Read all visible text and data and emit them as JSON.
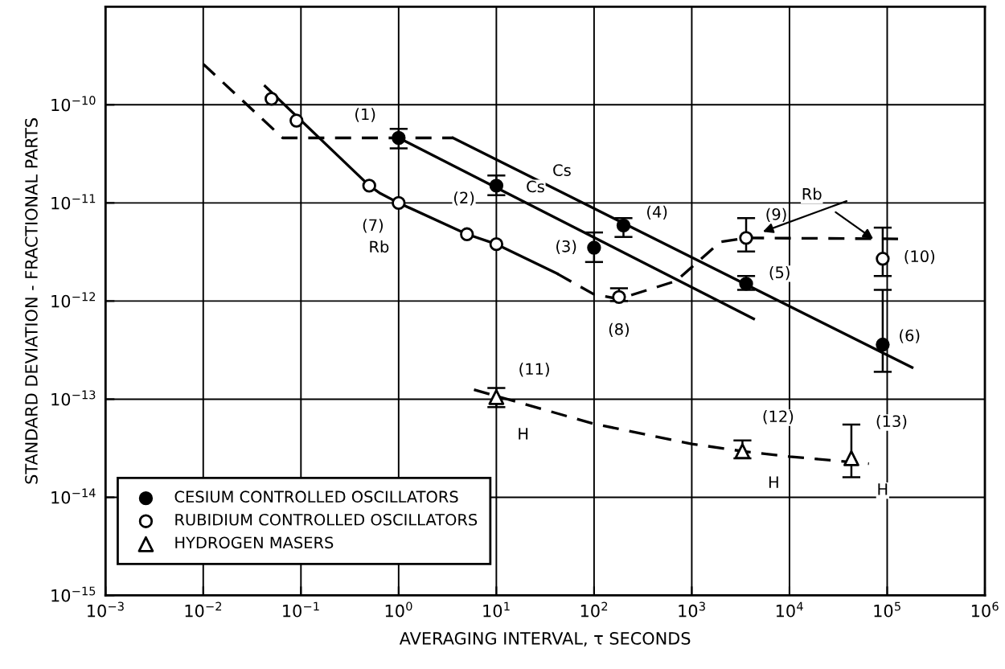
{
  "chart_data": {
    "type": "scatter",
    "xlabel": "AVERAGING INTERVAL, τ SECONDS",
    "ylabel": "STANDARD DEVIATION - FRACTIONAL PARTS",
    "log": "xy",
    "xlim": [
      0.001,
      1000000
    ],
    "ylim": [
      1e-15,
      1e-09
    ],
    "xticks": [
      {
        "value": 0.001,
        "label": "10$^{−3}$"
      },
      {
        "value": 0.01,
        "label": "10$^{−2}$"
      },
      {
        "value": 0.1,
        "label": "10$^{−1}$"
      },
      {
        "value": 1,
        "label": "10$^{0}$"
      },
      {
        "value": 10,
        "label": "10$^{1}$"
      },
      {
        "value": 100,
        "label": "10$^{2}$"
      },
      {
        "value": 1000,
        "label": "10$^{3}$"
      },
      {
        "value": 10000,
        "label": "10$^{4}$"
      },
      {
        "value": 100000,
        "label": "10$^{5}$"
      },
      {
        "value": 1000000,
        "label": "10$^{6}$"
      }
    ],
    "yticks": [
      {
        "value": 1e-15,
        "label": "10$^{−15}$"
      },
      {
        "value": 1e-14,
        "label": "10$^{−14}$"
      },
      {
        "value": 1e-13,
        "label": "10$^{−13}$"
      },
      {
        "value": 1e-12,
        "label": "10$^{−12}$"
      },
      {
        "value": 1e-11,
        "label": "10$^{−11}$"
      },
      {
        "value": 1e-10,
        "label": "10$^{−10}$"
      }
    ],
    "grid": true,
    "legend": "bottom left",
    "series": [
      {
        "name": "CESIUM CONTROLLED OSCILLATORS",
        "marker": "circle",
        "color": "#000000",
        "x": [
          1,
          10,
          100,
          200,
          3600,
          90000
        ],
        "values": [
          4.6e-11,
          1.5e-11,
          3.5e-12,
          5.9e-12,
          1.5e-12,
          3.6e-13
        ],
        "errors": [
          [
            3.6e-11,
            5.7e-11
          ],
          [
            1.2e-11,
            1.9e-11
          ],
          [
            2.5e-12,
            5e-12
          ],
          [
            4.5e-12,
            7e-12
          ],
          [
            1.3e-12,
            1.8e-12
          ],
          [
            1.9e-13,
            1.3e-12
          ]
        ]
      },
      {
        "name": "RUBIDIUM CONTROLLED OSCILLATORS",
        "marker": "circle",
        "color": "#ffffff",
        "x": [
          0.05,
          0.09,
          0.5,
          1,
          5,
          10,
          180,
          3600,
          90000
        ],
        "values": [
          1.15e-10,
          6.9e-11,
          1.5e-11,
          1e-11,
          4.8e-12,
          3.8e-12,
          1.1e-12,
          4.4e-12,
          2.7e-12
        ],
        "errors": [
          null,
          null,
          null,
          null,
          null,
          null,
          [
            1e-12,
            1.35e-12
          ],
          [
            3.2e-12,
            7e-12
          ],
          [
            1.8e-12,
            5.6e-12
          ]
        ]
      },
      {
        "name": "HYDROGEN MASERS",
        "marker": "triangle",
        "color": "#ffffff",
        "x": [
          10,
          3300,
          43000
        ],
        "values": [
          1.05e-13,
          2.95e-14,
          2.5e-14
        ],
        "errors": [
          [
            8.3e-14,
            1.3e-13
          ],
          [
            2.5e-14,
            3.8e-14
          ],
          [
            1.6e-14,
            5.5e-14
          ]
        ]
      },
      {
        "type": "line",
        "line_style": "solid",
        "marker": "none",
        "color": "#000000",
        "x": [
          0.043,
          0.5,
          0.65,
          1,
          5,
          10,
          42
        ],
        "values": [
          1.55e-10,
          1.5e-11,
          1.25e-11,
          1e-11,
          4.8e-12,
          3.8e-12,
          1.9e-12
        ]
      },
      {
        "type": "line",
        "line_style": "dashed",
        "marker": "none",
        "color": "#000000",
        "x": [
          42,
          100,
          180,
          690,
          1200,
          1950,
          3600,
          135000
        ],
        "values": [
          1.9e-12,
          1.17e-12,
          1.05e-12,
          1.6e-12,
          2.6e-12,
          4e-12,
          4.4e-12,
          4.3e-12
        ]
      },
      {
        "type": "line",
        "line_style": "dashed",
        "marker": "none",
        "color": "#000000",
        "x": [
          0.01,
          0.065,
          3.6
        ],
        "values": [
          2.6e-10,
          4.6e-11,
          4.6e-11
        ]
      },
      {
        "type": "line",
        "line_style": "solid",
        "marker": "none",
        "color": "#000000",
        "x": [
          3.6,
          180000
        ],
        "values": [
          4.6e-11,
          2.1e-13
        ]
      },
      {
        "type": "line",
        "line_style": "solid",
        "marker": "none",
        "color": "#000000",
        "x": [
          1,
          4300
        ],
        "values": [
          4.6e-11,
          6.6e-13
        ]
      },
      {
        "type": "line",
        "line_style": "dashed",
        "marker": "none",
        "color": "#000000",
        "x": [
          5.9,
          100,
          1000,
          3300,
          10000,
          65000
        ],
        "values": [
          1.25e-13,
          5.6e-14,
          3.5e-14,
          2.95e-14,
          2.6e-14,
          2.2e-14
        ]
      }
    ],
    "annotations": [
      {
        "text": "(1)",
        "x": 1,
        "y": 4.6e-11
      },
      {
        "text": "(2)",
        "x": 10,
        "y": 1.5e-11
      },
      {
        "text": "Cs",
        "x": 10,
        "y": 1.5e-11
      },
      "Cs",
      {
        "text": "(7)",
        "x": 1,
        "y": 1e-11
      },
      "Rb",
      {
        "text": "(3)",
        "x": 100,
        "y": 3.5e-12
      },
      {
        "text": "(4)",
        "x": 200,
        "y": 5.9e-12
      },
      {
        "text": "(8)",
        "x": 180,
        "y": 1.1e-12
      },
      {
        "text": "(9)",
        "x": 3600,
        "y": 4.4e-12
      },
      {
        "text": "(5)",
        "x": 3600,
        "y": 1.5e-12
      },
      {
        "text": "(10)",
        "x": 90000,
        "y": 2.7e-12
      },
      {
        "text": "(6)",
        "x": 90000,
        "y": 3.6e-13
      },
      {
        "text": "(11)",
        "x": 10,
        "y": 1.05e-13
      },
      {
        "text": "H",
        "x": 10,
        "y": 1.05e-13
      },
      {
        "text": "(12)",
        "x": 3300,
        "y": 2.95e-14
      },
      {
        "text": "H",
        "x": 3300,
        "y": 2.95e-14
      },
      {
        "text": "(13)",
        "x": 43000,
        "y": 2.5e-14
      },
      {
        "text": "H",
        "x": 43000,
        "y": 2.5e-14
      },
      {
        "text": "Rb",
        "x": 72000,
        "y": 4.3e-12
      }
    ]
  }
}
